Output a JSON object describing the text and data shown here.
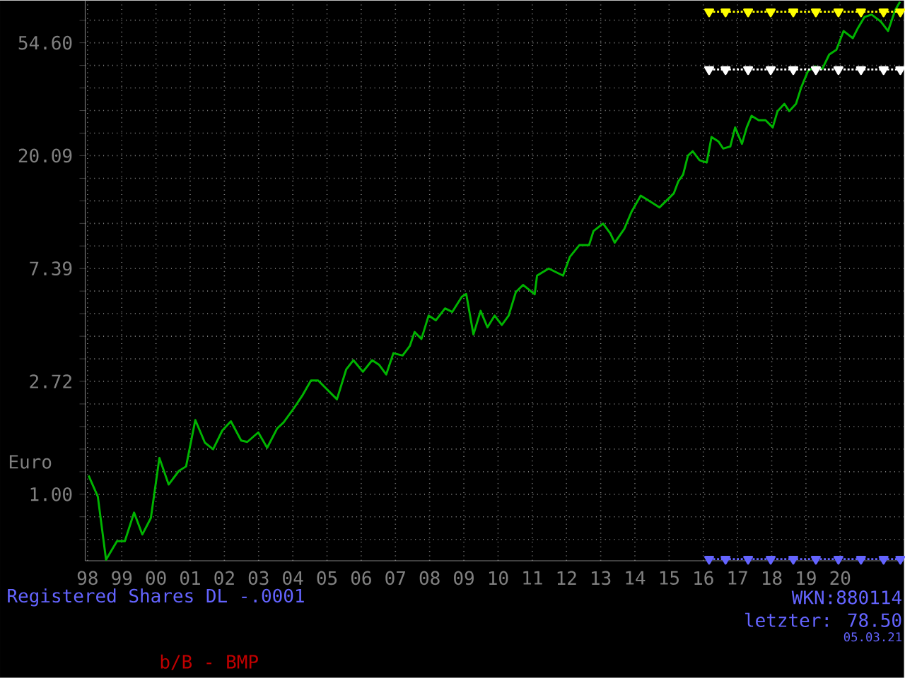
{
  "chart_data": {
    "type": "line",
    "title": "Registered Shares DL -.0001",
    "ylabel": "Euro",
    "log": "y",
    "grid": true,
    "marker": "none",
    "line_style": "solid",
    "annotations": [
      "WKN:880114",
      "letzter: 78.50",
      "05.03.21",
      "b/B - BMP"
    ],
    "xlim": [
      1997.93,
      2021.88
    ],
    "ylim": [
      0.555,
      79.4
    ],
    "xticks": [
      {
        "value": 1998,
        "label": "98"
      },
      {
        "value": 1999,
        "label": "99"
      },
      {
        "value": 2000,
        "label": "00"
      },
      {
        "value": 2001,
        "label": "01"
      },
      {
        "value": 2002,
        "label": "02"
      },
      {
        "value": 2003,
        "label": "03"
      },
      {
        "value": 2004,
        "label": "04"
      },
      {
        "value": 2005,
        "label": "05"
      },
      {
        "value": 2006,
        "label": "06"
      },
      {
        "value": 2007,
        "label": "07"
      },
      {
        "value": 2008,
        "label": "08"
      },
      {
        "value": 2009,
        "label": "09"
      },
      {
        "value": 2010,
        "label": "10"
      },
      {
        "value": 2011,
        "label": "11"
      },
      {
        "value": 2012,
        "label": "12"
      },
      {
        "value": 2013,
        "label": "13"
      },
      {
        "value": 2014,
        "label": "14"
      },
      {
        "value": 2015,
        "label": "15"
      },
      {
        "value": 2016,
        "label": "16"
      },
      {
        "value": 2017,
        "label": "17"
      },
      {
        "value": 2018,
        "label": "18"
      },
      {
        "value": 2019,
        "label": "19"
      },
      {
        "value": 2020,
        "label": "20"
      }
    ],
    "yticks": [
      {
        "value": 0.67,
        "label": null
      },
      {
        "value": 0.819,
        "label": null
      },
      {
        "value": 1,
        "label": "1.00"
      },
      {
        "value": 1.221,
        "label": null
      },
      {
        "value": 1.492,
        "label": null
      },
      {
        "value": 1.822,
        "label": null
      },
      {
        "value": 2.226,
        "label": null
      },
      {
        "value": 2.72,
        "label": "2.72"
      },
      {
        "value": 3.32,
        "label": null
      },
      {
        "value": 4.055,
        "label": null
      },
      {
        "value": 4.953,
        "label": null
      },
      {
        "value": 6.05,
        "label": null
      },
      {
        "value": 7.39,
        "label": "7.39"
      },
      {
        "value": 9.025,
        "label": null
      },
      {
        "value": 11.02,
        "label": null
      },
      {
        "value": 13.46,
        "label": null
      },
      {
        "value": 16.44,
        "label": null
      },
      {
        "value": 20.09,
        "label": "20.09"
      },
      {
        "value": 24.53,
        "label": null
      },
      {
        "value": 29.96,
        "label": null
      },
      {
        "value": 36.6,
        "label": null
      },
      {
        "value": 44.7,
        "label": null
      },
      {
        "value": 54.6,
        "label": "54.60"
      },
      {
        "value": 66.69,
        "label": null
      }
    ],
    "series": [
      {
        "color": "#00b400",
        "x": [
          1998.03,
          1998.3,
          1998.54,
          1998.86,
          1999.09,
          1999.36,
          1999.6,
          1999.85,
          2000.1,
          2000.37,
          2000.67,
          2000.88,
          2001.15,
          2001.43,
          2001.67,
          2001.94,
          2002.19,
          2002.49,
          2002.67,
          2002.99,
          2003.25,
          2003.54,
          2003.73,
          2004.05,
          2004.28,
          2004.53,
          2004.74,
          2005.29,
          2005.56,
          2005.77,
          2006.05,
          2006.32,
          2006.52,
          2006.73,
          2006.94,
          2007.21,
          2007.42,
          2007.56,
          2007.76,
          2007.97,
          2008.18,
          2008.45,
          2008.66,
          2008.94,
          2009.07,
          2009.28,
          2009.49,
          2009.69,
          2009.9,
          2010.11,
          2010.31,
          2010.52,
          2010.73,
          2011.07,
          2011.14,
          2011.48,
          2011.9,
          2012.1,
          2012.38,
          2012.66,
          2012.79,
          2013.07,
          2013.28,
          2013.41,
          2013.69,
          2013.9,
          2014.17,
          2014.52,
          2014.72,
          2015.0,
          2015.14,
          2015.27,
          2015.41,
          2015.55,
          2015.69,
          2015.89,
          2016.1,
          2016.24,
          2016.44,
          2016.58,
          2016.79,
          2016.93,
          2017.13,
          2017.27,
          2017.41,
          2017.62,
          2017.82,
          2018.03,
          2018.17,
          2018.37,
          2018.51,
          2018.71,
          2018.86,
          2019.06,
          2019.27,
          2019.48,
          2019.68,
          2019.89,
          2020.1,
          2020.37,
          2020.51,
          2020.71,
          2020.92,
          2021.19,
          2021.4,
          2021.61,
          2021.75
        ],
        "values": [
          1.18,
          0.98,
          0.56,
          0.66,
          0.66,
          0.85,
          0.7,
          0.81,
          1.38,
          1.09,
          1.23,
          1.28,
          1.93,
          1.58,
          1.49,
          1.76,
          1.91,
          1.61,
          1.59,
          1.73,
          1.51,
          1.79,
          1.89,
          2.16,
          2.4,
          2.74,
          2.74,
          2.32,
          3.02,
          3.28,
          2.96,
          3.28,
          3.15,
          2.89,
          3.49,
          3.42,
          3.72,
          4.21,
          3.96,
          4.87,
          4.67,
          5.19,
          5.03,
          5.75,
          5.9,
          4.12,
          5.08,
          4.39,
          4.87,
          4.48,
          4.87,
          6.0,
          6.39,
          5.88,
          6.94,
          7.39,
          6.94,
          8.2,
          9.1,
          9.1,
          10.3,
          11.0,
          10.1,
          9.29,
          10.5,
          12.2,
          14.1,
          13.2,
          12.7,
          13.8,
          14.4,
          16.0,
          17.0,
          20.1,
          20.9,
          19.3,
          18.9,
          23.7,
          22.8,
          21.4,
          21.8,
          25.8,
          22.3,
          25.8,
          28.6,
          27.5,
          27.5,
          25.8,
          29.8,
          31.8,
          29.8,
          31.8,
          36.7,
          42.5,
          44.3,
          43.4,
          49.2,
          51.3,
          60.6,
          56.9,
          61.9,
          68.6,
          70.1,
          65.9,
          60.6,
          73.0,
          78.5
        ]
      },
      {
        "color": "#ffff00",
        "type": "line",
        "line_style": "dotted",
        "marker": "triangle",
        "x": [
          2016.17,
          2016.65,
          2017.31,
          2017.97,
          2018.63,
          2019.29,
          2019.95,
          2020.61,
          2021.27,
          2021.76
        ],
        "values": [
          71.9,
          71.9,
          71.9,
          71.9,
          71.9,
          71.9,
          71.9,
          71.9,
          71.9,
          71.9
        ]
      },
      {
        "color": "#ffffff",
        "type": "line",
        "line_style": "dotted",
        "marker": "triangle",
        "x": [
          2016.17,
          2016.65,
          2017.31,
          2017.97,
          2018.63,
          2019.29,
          2019.95,
          2020.61,
          2021.27,
          2021.76
        ],
        "values": [
          43.1,
          43.1,
          43.1,
          43.1,
          43.1,
          43.1,
          43.1,
          43.1,
          43.1,
          43.1
        ]
      },
      {
        "color": "#6464ff",
        "type": "line",
        "line_style": "dotted",
        "marker": "triangle",
        "x": [
          2016.17,
          2016.65,
          2017.31,
          2017.97,
          2018.63,
          2019.29,
          2019.95,
          2020.61,
          2021.27,
          2021.76
        ],
        "values": [
          0.563,
          0.563,
          0.563,
          0.563,
          0.563,
          0.563,
          0.563,
          0.563,
          0.563,
          0.563
        ]
      }
    ]
  }
}
